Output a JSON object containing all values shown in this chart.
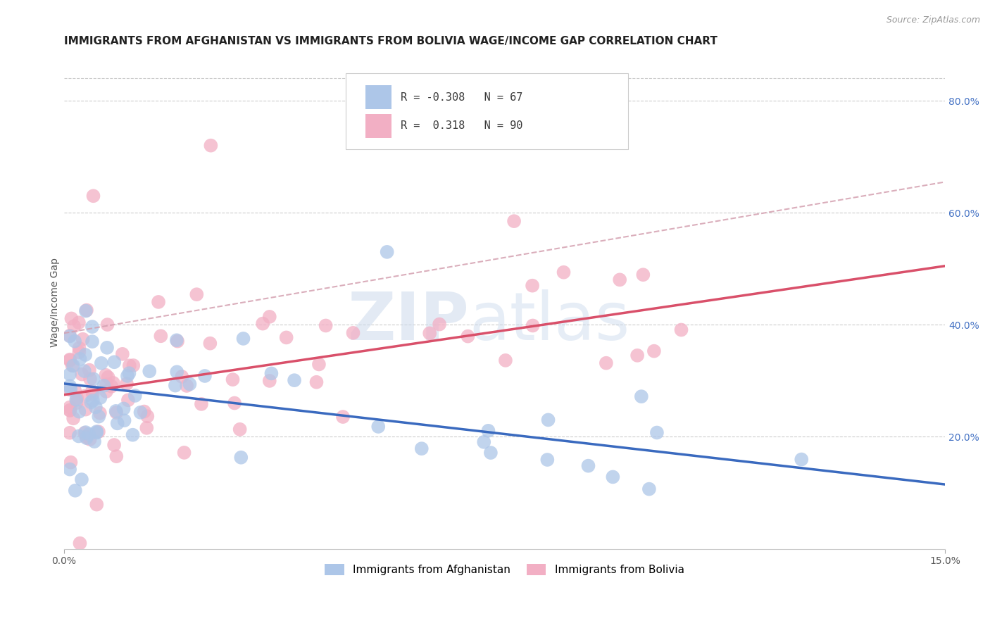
{
  "title": "IMMIGRANTS FROM AFGHANISTAN VS IMMIGRANTS FROM BOLIVIA WAGE/INCOME GAP CORRELATION CHART",
  "source": "Source: ZipAtlas.com",
  "ylabel": "Wage/Income Gap",
  "xmin": 0.0,
  "xmax": 0.15,
  "ymin": 0.0,
  "ymax": 0.88,
  "right_yticks": [
    0.2,
    0.4,
    0.6,
    0.8
  ],
  "right_yticklabels": [
    "20.0%",
    "40.0%",
    "60.0%",
    "80.0%"
  ],
  "xticks": [
    0.0,
    0.15
  ],
  "xticklabels": [
    "0.0%",
    "15.0%"
  ],
  "afghanistan_R": "-0.308",
  "afghanistan_N": "67",
  "bolivia_R": "0.318",
  "bolivia_N": "90",
  "afghanistan_color": "#adc6e8",
  "bolivia_color": "#f2afc4",
  "afghanistan_line_color": "#3a6abf",
  "bolivia_line_color": "#d9506a",
  "dashed_line_color": "#d4a0b0",
  "watermark_zip": "ZIP",
  "watermark_atlas": "atlas",
  "background_color": "#ffffff",
  "grid_color": "#cccccc",
  "title_fontsize": 11,
  "axis_label_fontsize": 10,
  "tick_fontsize": 10,
  "legend_fontsize": 11,
  "af_line_x0": 0.0,
  "af_line_y0": 0.295,
  "af_line_x1": 0.15,
  "af_line_y1": 0.115,
  "bo_line_x0": 0.0,
  "bo_line_y0": 0.275,
  "bo_line_x1": 0.15,
  "bo_line_y1": 0.505,
  "dash_line_x0": 0.0,
  "dash_line_y0": 0.385,
  "dash_line_x1": 0.15,
  "dash_line_y1": 0.655
}
